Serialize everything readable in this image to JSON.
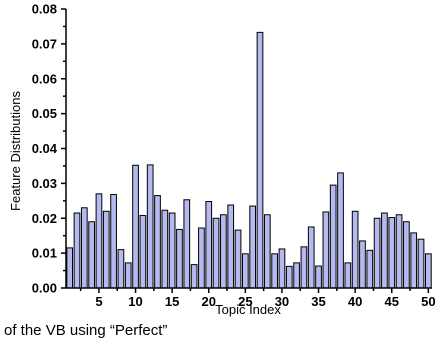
{
  "chart_data": {
    "type": "bar",
    "xlabel": "Topic Index",
    "ylabel": "Feature Distributions",
    "xlim": [
      0.5,
      50.5
    ],
    "ylim": [
      0,
      0.08
    ],
    "x_ticks": [
      5,
      10,
      15,
      20,
      25,
      30,
      35,
      40,
      45,
      50
    ],
    "y_ticks": [
      "0.00",
      "0.01",
      "0.02",
      "0.03",
      "0.04",
      "0.05",
      "0.06",
      "0.07",
      "0.08"
    ],
    "bar_color": "#b4b9ef",
    "bar_edge_color": "#000000",
    "categories": [
      1,
      2,
      3,
      4,
      5,
      6,
      7,
      8,
      9,
      10,
      11,
      12,
      13,
      14,
      15,
      16,
      17,
      18,
      19,
      20,
      21,
      22,
      23,
      24,
      25,
      26,
      27,
      28,
      29,
      30,
      31,
      32,
      33,
      34,
      35,
      36,
      37,
      38,
      39,
      40,
      41,
      42,
      43,
      44,
      45,
      46,
      47,
      48,
      49,
      50
    ],
    "values": [
      0.0115,
      0.0215,
      0.023,
      0.019,
      0.027,
      0.022,
      0.0268,
      0.011,
      0.0072,
      0.0352,
      0.0208,
      0.0353,
      0.0265,
      0.0223,
      0.0215,
      0.0168,
      0.0253,
      0.0067,
      0.0172,
      0.0248,
      0.02,
      0.021,
      0.0238,
      0.0166,
      0.0098,
      0.0235,
      0.0733,
      0.021,
      0.0098,
      0.0112,
      0.0062,
      0.0072,
      0.0118,
      0.0175,
      0.0063,
      0.0218,
      0.0295,
      0.033,
      0.0072,
      0.022,
      0.0135,
      0.0108,
      0.02,
      0.0215,
      0.0202,
      0.021,
      0.019,
      0.0158,
      0.014,
      0.0098
    ]
  },
  "caption": "of the VB using “Perfect”"
}
